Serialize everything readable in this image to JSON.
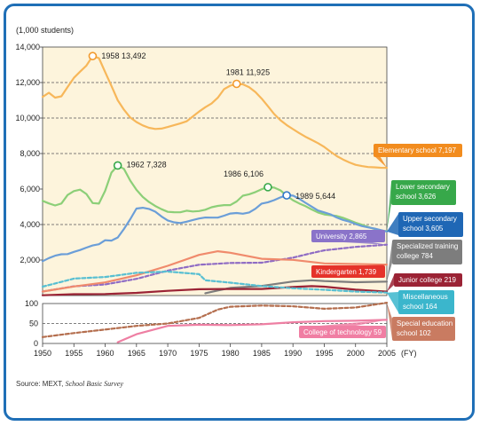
{
  "source": {
    "prefix": "Source: MEXT, ",
    "name": "School Basic Survey"
  },
  "chart_data": {
    "type": "line",
    "ylabel": "(1,000 students)",
    "xlabel": "(FY)",
    "xlim": [
      1950,
      2005
    ],
    "x_ticks": [
      1950,
      1955,
      1960,
      1965,
      1970,
      1975,
      1980,
      1985,
      1990,
      1995,
      2000,
      2005
    ],
    "upper_panel": {
      "ylim": [
        0,
        14000
      ],
      "y_ticks": [
        2000,
        4000,
        6000,
        8000,
        10000,
        12000,
        14000
      ],
      "y_tick_labels": [
        "2,000",
        "4,000",
        "6,000",
        "8,000",
        "10,000",
        "12,000",
        "14,000"
      ],
      "dashed_gridlines": [
        4000,
        8000,
        10000,
        12000
      ],
      "background": "#fdf4dc"
    },
    "lower_panel": {
      "ylim": [
        0,
        100
      ],
      "y_ticks": [
        0,
        50,
        100
      ],
      "y_tick_labels": [
        "0",
        "50",
        "100"
      ],
      "dashed_gridlines": [
        50
      ]
    },
    "peaks": [
      {
        "series": "elementary",
        "x": 1958,
        "y": 13492,
        "label": "1958  13,492",
        "color": "#f29a2e"
      },
      {
        "series": "elementary",
        "x": 1981,
        "y": 11925,
        "label": "1981  11,925",
        "color": "#f29a2e"
      },
      {
        "series": "lower_secondary",
        "x": 1962,
        "y": 7328,
        "label": "1962  7,328",
        "color": "#37a84a"
      },
      {
        "series": "lower_secondary",
        "x": 1986,
        "y": 6106,
        "label": "1986  6,106",
        "color": "#37a84a"
      },
      {
        "series": "upper_secondary",
        "x": 1989,
        "y": 5644,
        "label": "1989  5,644",
        "color": "#2f76c9"
      }
    ],
    "series": [
      {
        "key": "elementary",
        "panel": "upper",
        "dashed": false,
        "color": "#f7b75a",
        "box_color": "#f28c1e",
        "label_lines": [
          "Elementary school  7,197"
        ],
        "x": [
          1950,
          1951,
          1952,
          1953,
          1954,
          1955,
          1956,
          1957,
          1958,
          1959,
          1960,
          1961,
          1962,
          1963,
          1964,
          1965,
          1966,
          1967,
          1968,
          1969,
          1970,
          1971,
          1972,
          1973,
          1974,
          1975,
          1976,
          1977,
          1978,
          1979,
          1980,
          1981,
          1982,
          1983,
          1984,
          1985,
          1986,
          1987,
          1988,
          1989,
          1990,
          1991,
          1992,
          1993,
          1994,
          1995,
          1996,
          1997,
          1998,
          1999,
          2000,
          2001,
          2002,
          2003,
          2004,
          2005
        ],
        "y": [
          11191,
          11424,
          11148,
          11225,
          11750,
          12267,
          12617,
          12956,
          13492,
          13375,
          12591,
          11811,
          10999,
          10471,
          10031,
          9775,
          9584,
          9452,
          9384,
          9403,
          9493,
          9596,
          9696,
          9816,
          10089,
          10365,
          10609,
          10819,
          11146,
          11630,
          11827,
          11925,
          11902,
          11739,
          11465,
          11095,
          10666,
          10227,
          9873,
          9607,
          9373,
          9157,
          8947,
          8769,
          8583,
          8370,
          8105,
          7855,
          7663,
          7500,
          7366,
          7296,
          7239,
          7227,
          7200,
          7197
        ]
      },
      {
        "key": "lower_secondary",
        "panel": "upper",
        "dashed": false,
        "color": "#8ccf78",
        "box_color": "#37a84a",
        "label_lines": [
          "Lower secondary",
          "school  3,626"
        ],
        "x": [
          1950,
          1951,
          1952,
          1953,
          1954,
          1955,
          1956,
          1957,
          1958,
          1959,
          1960,
          1961,
          1962,
          1963,
          1964,
          1965,
          1966,
          1967,
          1968,
          1969,
          1970,
          1971,
          1972,
          1973,
          1974,
          1975,
          1976,
          1977,
          1978,
          1979,
          1980,
          1981,
          1982,
          1983,
          1984,
          1985,
          1986,
          1987,
          1988,
          1989,
          1990,
          1991,
          1992,
          1993,
          1994,
          1995,
          1996,
          1997,
          1998,
          1999,
          2000,
          2001,
          2002,
          2003,
          2004,
          2005
        ],
        "y": [
          5333,
          5188,
          5076,
          5187,
          5664,
          5883,
          5963,
          5718,
          5210,
          5180,
          5900,
          6924,
          7328,
          7133,
          6476,
          5957,
          5556,
          5271,
          5043,
          4865,
          4717,
          4694,
          4688,
          4780,
          4735,
          4762,
          4833,
          4977,
          5048,
          5094,
          5094,
          5300,
          5624,
          5707,
          5828,
          5990,
          6106,
          6082,
          5924,
          5620,
          5369,
          5188,
          5037,
          4850,
          4681,
          4571,
          4527,
          4481,
          4381,
          4244,
          4104,
          3992,
          3863,
          3748,
          3664,
          3626
        ]
      },
      {
        "key": "upper_secondary",
        "panel": "upper",
        "dashed": false,
        "color": "#6b9ed8",
        "box_color": "#1f67b5",
        "label_lines": [
          "Upper secondary",
          "school  3,605"
        ],
        "x": [
          1950,
          1951,
          1952,
          1953,
          1954,
          1955,
          1956,
          1957,
          1958,
          1959,
          1960,
          1961,
          1962,
          1963,
          1964,
          1965,
          1966,
          1967,
          1968,
          1969,
          1970,
          1971,
          1972,
          1973,
          1974,
          1975,
          1976,
          1977,
          1978,
          1979,
          1980,
          1981,
          1982,
          1983,
          1984,
          1985,
          1986,
          1987,
          1988,
          1989,
          1990,
          1991,
          1992,
          1993,
          1994,
          1995,
          1996,
          1997,
          1998,
          1999,
          2000,
          2001,
          2002,
          2003,
          2004,
          2005
        ],
        "y": [
          1935,
          2110,
          2245,
          2325,
          2334,
          2458,
          2566,
          2702,
          2821,
          2891,
          3115,
          3097,
          3272,
          3751,
          4302,
          4900,
          4944,
          4880,
          4726,
          4457,
          4228,
          4124,
          4087,
          4159,
          4253,
          4342,
          4397,
          4390,
          4392,
          4502,
          4622,
          4649,
          4609,
          4681,
          4889,
          5178,
          5256,
          5374,
          5528,
          5644,
          5631,
          5455,
          5226,
          5009,
          4791,
          4686,
          4576,
          4394,
          4259,
          4166,
          4030,
          3913,
          3839,
          3775,
          3692,
          3605
        ]
      },
      {
        "key": "university",
        "panel": "upper",
        "dashed": true,
        "color": "#8f6cc4",
        "box_color": "#8a73c9",
        "label_lines": [
          "University  2,865"
        ],
        "x": [
          1950,
          1955,
          1960,
          1965,
          1970,
          1975,
          1980,
          1985,
          1990,
          1993,
          1995,
          2000,
          2005
        ],
        "y": [
          225,
          520,
          627,
          938,
          1406,
          1734,
          1835,
          1849,
          2133,
          2390,
          2547,
          2740,
          2865
        ]
      },
      {
        "key": "kindergarten",
        "panel": "upper",
        "dashed": false,
        "color": "#f08a6c",
        "box_color": "#e5332a",
        "label_lines": [
          "Kindergarten  1,739"
        ],
        "x": [
          1950,
          1955,
          1960,
          1965,
          1970,
          1975,
          1978,
          1980,
          1985,
          1990,
          1995,
          2000,
          2005
        ],
        "y": [
          225,
          510,
          742,
          1138,
          1675,
          2292,
          2497,
          2408,
          2068,
          2008,
          1808,
          1773,
          1739
        ]
      },
      {
        "key": "specialized_training",
        "panel": "upper",
        "dashed": false,
        "color": "#7d7d7d",
        "box_color": "#7d7d7d",
        "label_lines": [
          "Specialized training",
          "college  784"
        ],
        "x": [
          1976,
          1978,
          1980,
          1985,
          1990,
          1993,
          1995,
          2000,
          2005
        ],
        "y": [
          131,
          283,
          432,
          538,
          792,
          860,
          813,
          751,
          784
        ]
      },
      {
        "key": "junior_college",
        "panel": "upper",
        "dashed": false,
        "color": "#9b2335",
        "box_color": "#9b2335",
        "label_lines": [
          "Junior college  219"
        ],
        "x": [
          1950,
          1955,
          1960,
          1965,
          1970,
          1975,
          1980,
          1985,
          1990,
          1993,
          1995,
          2000,
          2005
        ],
        "y": [
          15,
          77,
          83,
          148,
          263,
          354,
          371,
          371,
          479,
          530,
          499,
          328,
          219
        ]
      },
      {
        "key": "miscellaneous",
        "panel": "upper",
        "dashed": true,
        "color": "#58bfd2",
        "box_color": "#3bb6cc",
        "label_lines": [
          "Miscellaneous",
          "school  164"
        ],
        "x": [
          1950,
          1955,
          1960,
          1965,
          1970,
          1975,
          1976,
          1980,
          1985,
          1990,
          1995,
          2000,
          2005
        ],
        "y": [
          500,
          956,
          1044,
          1278,
          1352,
          1205,
          860,
          724,
          534,
          412,
          323,
          223,
          164
        ]
      },
      {
        "key": "special_education",
        "panel": "lower",
        "dashed": true,
        "color": "#b46e4e",
        "box_color": "#c97b61",
        "label_lines": [
          "Special education",
          "school  102"
        ],
        "x": [
          1950,
          1955,
          1960,
          1965,
          1970,
          1975,
          1978,
          1980,
          1985,
          1990,
          1995,
          2000,
          2005
        ],
        "y": [
          16,
          26,
          35,
          44,
          50,
          64,
          85,
          92,
          95,
          93,
          87,
          90,
          102
        ]
      },
      {
        "key": "college_of_technology",
        "panel": "lower",
        "dashed": false,
        "color": "#ee7fa3",
        "box_color": "#f07ea3",
        "label_lines": [
          "College of technology  59"
        ],
        "x": [
          1962,
          1965,
          1970,
          1975,
          1980,
          1985,
          1990,
          1995,
          2000,
          2005
        ],
        "y": [
          3,
          23,
          44,
          47,
          46,
          48,
          53,
          56,
          57,
          59
        ]
      }
    ]
  }
}
